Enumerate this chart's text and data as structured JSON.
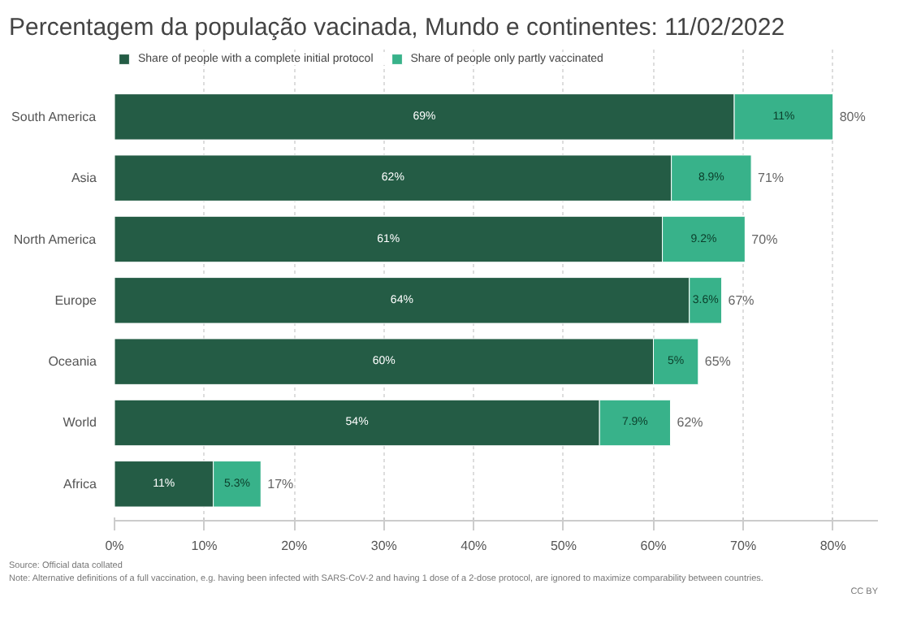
{
  "chart_data": {
    "type": "bar",
    "orientation": "horizontal",
    "stacked": true,
    "title": "Percentagem da população vacinada, Mundo e continentes: 11/02/2022",
    "categories": [
      "South America",
      "Asia",
      "North America",
      "Europe",
      "Oceania",
      "World",
      "Africa"
    ],
    "series": [
      {
        "name": "Share of people with a complete initial protocol",
        "color": "#245c45",
        "values": [
          69,
          62,
          61,
          64,
          60,
          54,
          11
        ],
        "value_labels": [
          "69%",
          "62%",
          "61%",
          "64%",
          "60%",
          "54%",
          "11%"
        ]
      },
      {
        "name": "Share of people only partly vaccinated",
        "color": "#38b28a",
        "values": [
          11,
          8.9,
          9.2,
          3.6,
          5,
          7.9,
          5.3
        ],
        "value_labels": [
          "11%",
          "8.9%",
          "9.2%",
          "3.6%",
          "5%",
          "7.9%",
          "5.3%"
        ]
      }
    ],
    "totals": [
      "80%",
      "71%",
      "70%",
      "67%",
      "65%",
      "62%",
      "17%"
    ],
    "xlim": [
      0,
      85
    ],
    "xticks": [
      {
        "value": 0,
        "label": "0%"
      },
      {
        "value": 10,
        "label": "10%"
      },
      {
        "value": 20,
        "label": "20%"
      },
      {
        "value": 30,
        "label": "30%"
      },
      {
        "value": 40,
        "label": "40%"
      },
      {
        "value": 50,
        "label": "50%"
      },
      {
        "value": 60,
        "label": "60%"
      },
      {
        "value": 70,
        "label": "70%"
      },
      {
        "value": 80,
        "label": "80%"
      }
    ],
    "grid": "x",
    "legend": "top left",
    "annotations": [
      "Source: Official data collated",
      "Note: Alternative definitions of a full vaccination, e.g. having been infected with SARS-CoV-2 and having 1 dose of a 2-dose protocol, are ignored to maximize comparability between countries.",
      "CC BY"
    ]
  }
}
